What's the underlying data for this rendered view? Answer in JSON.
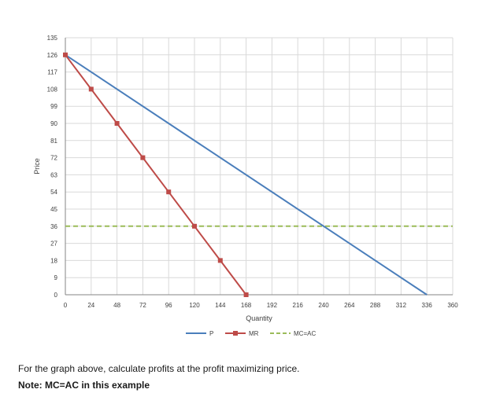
{
  "chart_data": {
    "type": "line",
    "xlabel": "Quantity",
    "ylabel": "Price",
    "xlim": [
      0,
      360
    ],
    "ylim": [
      0,
      135
    ],
    "x_ticks": [
      "0",
      "24",
      "48",
      "72",
      "96",
      "120",
      "144",
      "168",
      "192",
      "216",
      "240",
      "264",
      "288",
      "312",
      "336",
      "360"
    ],
    "y_ticks": [
      "0",
      "9",
      "18",
      "27",
      "36",
      "45",
      "54",
      "63",
      "72",
      "81",
      "90",
      "99",
      "108",
      "117",
      "126",
      "135"
    ],
    "grid": true,
    "legend": "bottom",
    "series": [
      {
        "name": "P",
        "color": "#4a7ebb",
        "marker": "none",
        "points": [
          [
            0,
            126
          ],
          [
            336,
            0
          ]
        ]
      },
      {
        "name": "MR",
        "color": "#be4b48",
        "marker": "square",
        "points": [
          [
            0,
            126
          ],
          [
            24,
            108
          ],
          [
            48,
            90
          ],
          [
            72,
            72
          ],
          [
            96,
            54
          ],
          [
            120,
            36
          ],
          [
            144,
            18
          ],
          [
            168,
            0
          ]
        ]
      },
      {
        "name": "MC=AC",
        "color": "#9bbb59",
        "marker": "none",
        "dash": true,
        "points": [
          [
            0,
            36
          ],
          [
            360,
            36
          ]
        ]
      }
    ]
  },
  "question": {
    "text": "For the graph above, calculate profits at the profit maximizing price.",
    "note": "Note: MC=AC in this example"
  }
}
